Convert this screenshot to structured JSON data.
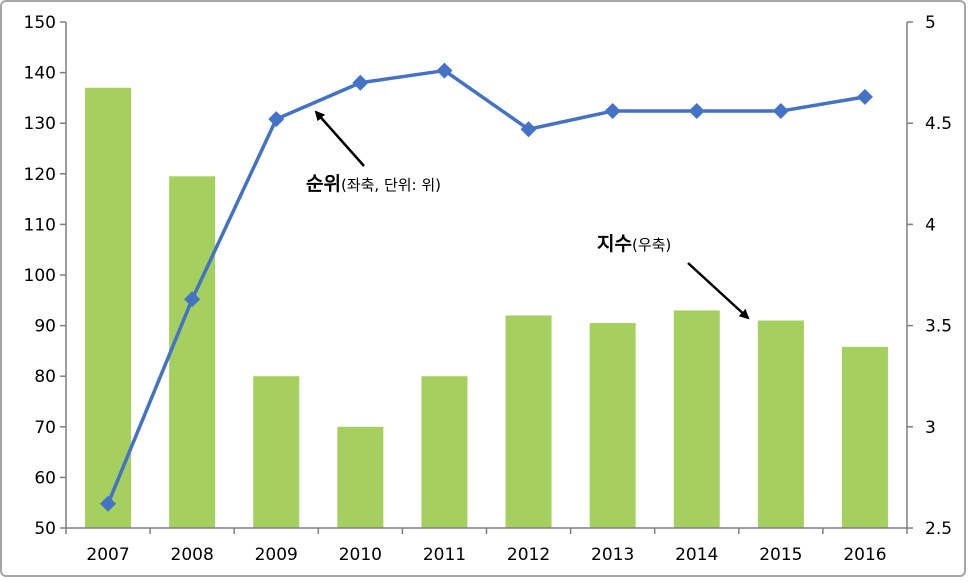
{
  "chart_data": {
    "type": "bar",
    "categories": [
      "2007",
      "2008",
      "2009",
      "2010",
      "2011",
      "2012",
      "2013",
      "2014",
      "2015",
      "2016"
    ],
    "series": [
      {
        "type": "bar",
        "axis": "left",
        "values": [
          137,
          119.5,
          80,
          70,
          80,
          92,
          90.5,
          93,
          91,
          85.8
        ],
        "color": "#a5cf5e"
      },
      {
        "type": "line",
        "axis": "right",
        "values": [
          2.62,
          3.63,
          4.52,
          4.7,
          4.76,
          4.47,
          4.56,
          4.56,
          4.56,
          4.63
        ],
        "color": "#4472c4"
      }
    ],
    "left_axis": {
      "min": 50,
      "max": 150,
      "ticks": [
        "50",
        "60",
        "70",
        "80",
        "90",
        "100",
        "110",
        "120",
        "130",
        "140",
        "150"
      ]
    },
    "right_axis": {
      "min": 2.5,
      "max": 5,
      "ticks": [
        "2.5",
        "3",
        "3.5",
        "4",
        "4.5",
        "5"
      ]
    },
    "annotations": [
      {
        "bold": "순위",
        "normal": "(좌축, 단위: 위)"
      },
      {
        "bold": "지수",
        "normal": "(우축)"
      }
    ],
    "grid": false
  }
}
